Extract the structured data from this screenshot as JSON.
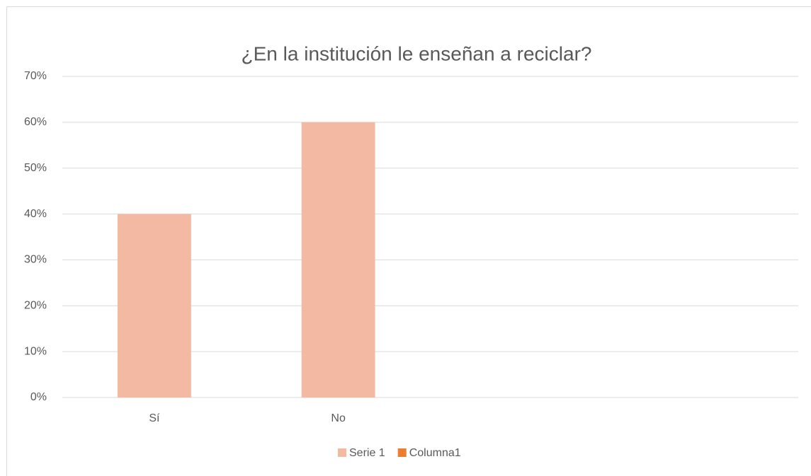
{
  "chart_data": {
    "type": "bar",
    "title": "¿En la institución le enseñan a reciclar?",
    "categories": [
      "Sí",
      "No",
      null,
      null
    ],
    "series": [
      {
        "name": "Serie 1",
        "color": "#f4b9a2",
        "values": [
          40,
          60,
          null,
          null
        ]
      },
      {
        "name": "Columna1",
        "color": "#ed7d31",
        "values": [
          null,
          null,
          null,
          null
        ]
      }
    ],
    "ylim": [
      0,
      70
    ],
    "yticks": [
      {
        "value": 0,
        "label": "0%"
      },
      {
        "value": 10,
        "label": "10%"
      },
      {
        "value": 20,
        "label": "20%"
      },
      {
        "value": 30,
        "label": "30%"
      },
      {
        "value": 40,
        "label": "40%"
      },
      {
        "value": 50,
        "label": "50%"
      },
      {
        "value": 60,
        "label": "60%"
      },
      {
        "value": 70,
        "label": "70%"
      }
    ],
    "grid": true,
    "legend": "bottom"
  }
}
